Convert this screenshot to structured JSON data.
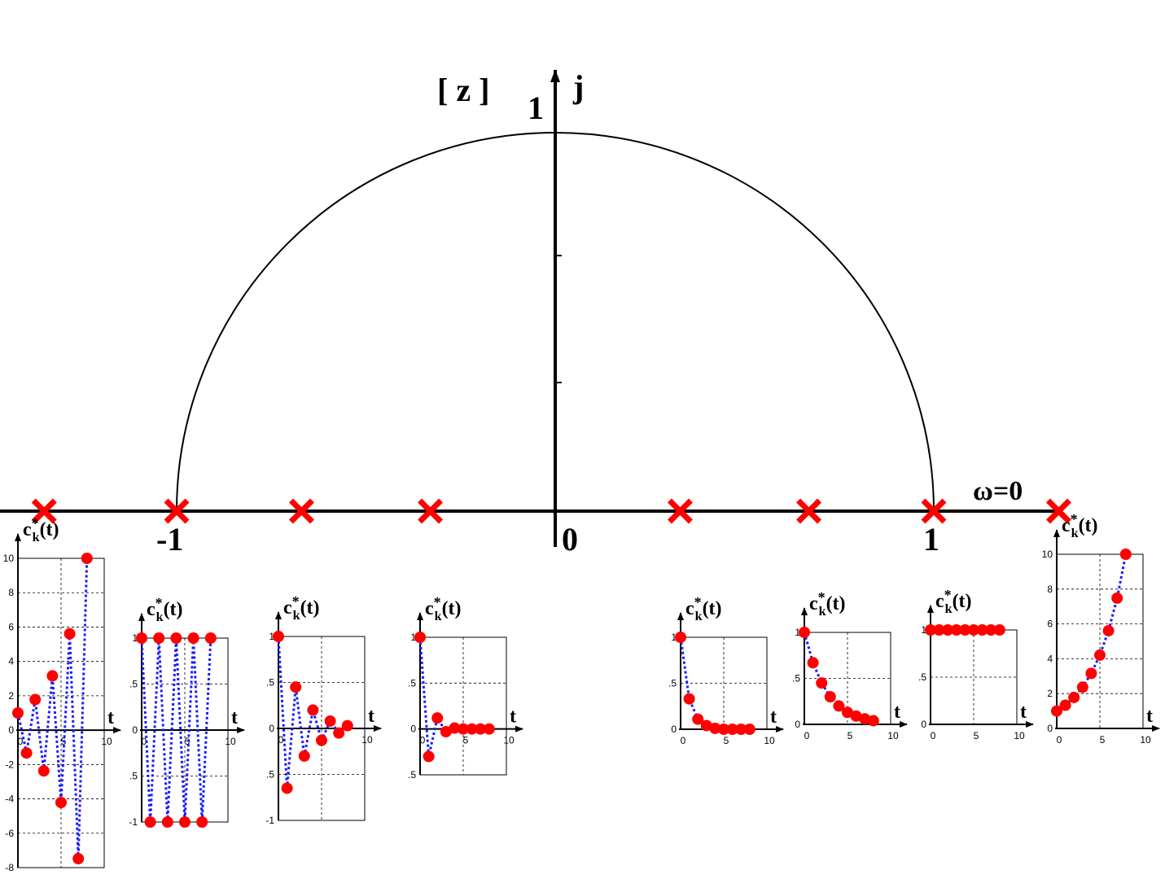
{
  "z_plane": {
    "label": "[ z ]",
    "imag_label": "j",
    "imag_unit_label": "1",
    "neg_one_label": "-1",
    "origin_label": "0",
    "pos_one_label": "1",
    "omega_label": "ω=0",
    "poles": [
      -1.35,
      -1,
      -0.67,
      -0.33,
      0.33,
      0.67,
      1,
      1.33
    ]
  },
  "plot_label": {
    "base": "c",
    "sup": "*",
    "sub": "k",
    "tail": "(t)"
  },
  "x_label": "t",
  "plots": [
    {
      "values": [
        1,
        -1.33,
        1.78,
        -2.37,
        3.16,
        -4.21,
        5.61,
        -7.48,
        10
      ],
      "xlim": [
        0,
        10
      ],
      "xticks": [
        0,
        5,
        10
      ],
      "ylim": [
        -8,
        10
      ],
      "yticks": [
        -8,
        -6,
        -4,
        -2,
        0,
        2,
        4,
        6,
        8,
        10
      ]
    },
    {
      "values": [
        1,
        -1,
        1,
        -1,
        1,
        -1,
        1,
        -1,
        1
      ],
      "xlim": [
        0,
        10
      ],
      "xticks": [
        0,
        5,
        10
      ],
      "ylim": [
        -1,
        1
      ],
      "yticks": [
        -1,
        {
          "value": -0.5,
          "label": ".5"
        },
        0,
        {
          "value": 0.5,
          "label": ".5"
        },
        1
      ]
    },
    {
      "values": [
        1,
        -0.65,
        0.45,
        -0.3,
        0.2,
        -0.13,
        0.08,
        -0.05,
        0.03
      ],
      "xlim": [
        0,
        10
      ],
      "xticks": [
        0,
        5,
        10
      ],
      "ylim": [
        -1,
        1
      ],
      "yticks": [
        -1,
        {
          "value": -0.5,
          "label": ".5"
        },
        0,
        {
          "value": 0.5,
          "label": ".5"
        },
        1
      ]
    },
    {
      "values": [
        1,
        -0.3,
        0.12,
        -0.03,
        0.01,
        0,
        0,
        0,
        0
      ],
      "xlim": [
        0,
        10
      ],
      "xticks": [
        0,
        5,
        10
      ],
      "ylim": [
        -0.5,
        1
      ],
      "yticks": [
        {
          "value": -0.5,
          "label": ".5"
        },
        0,
        {
          "value": 0.5,
          "label": ".5"
        },
        1
      ]
    },
    {
      "values": [
        1,
        0.33,
        0.11,
        0.04,
        0.01,
        0,
        0,
        0,
        0
      ],
      "xlim": [
        0,
        10
      ],
      "xticks": [
        0,
        5,
        10
      ],
      "ylim": [
        0,
        1
      ],
      "yticks": [
        0,
        {
          "value": 0.5,
          "label": ".5"
        },
        1
      ]
    },
    {
      "values": [
        1,
        0.67,
        0.45,
        0.3,
        0.2,
        0.13,
        0.09,
        0.06,
        0.04
      ],
      "xlim": [
        0,
        10
      ],
      "xticks": [
        0,
        5,
        10
      ],
      "ylim": [
        0,
        1
      ],
      "yticks": [
        0,
        {
          "value": 0.5,
          "label": ".5"
        },
        1
      ]
    },
    {
      "values": [
        1,
        1,
        1,
        1,
        1,
        1,
        1,
        1,
        1
      ],
      "xlim": [
        0,
        10
      ],
      "xticks": [
        0,
        5,
        10
      ],
      "ylim": [
        0,
        1
      ],
      "yticks": [
        0,
        {
          "value": 0.5,
          "label": ".5"
        },
        1
      ]
    },
    {
      "values": [
        1,
        1.33,
        1.78,
        2.37,
        3.16,
        4.21,
        5.61,
        7.48,
        10
      ],
      "xlim": [
        0,
        10
      ],
      "xticks": [
        0,
        5,
        10
      ],
      "ylim": [
        0,
        10
      ],
      "yticks": [
        0,
        2,
        4,
        6,
        8,
        10
      ]
    }
  ]
}
